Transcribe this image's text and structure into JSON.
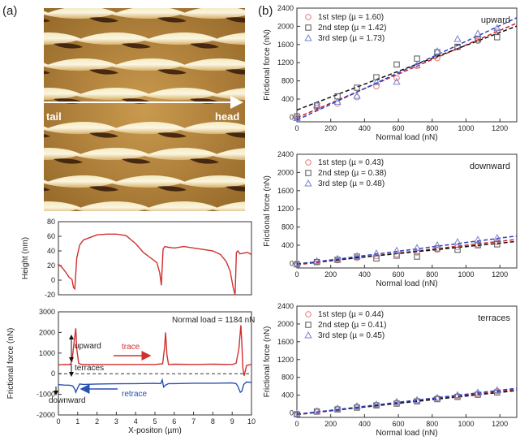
{
  "panels": {
    "a": "(a)",
    "b": "(b)"
  },
  "afm": {
    "tail": "tail",
    "head": "head"
  },
  "chart_data": [
    {
      "type": "line",
      "title": "",
      "xlabel": "",
      "ylabel": "Height (nm)",
      "xlim": [
        0,
        10
      ],
      "ylim": [
        -20,
        80
      ],
      "yticks": [
        -20,
        0,
        20,
        40,
        60,
        80
      ],
      "series": [
        {
          "name": "height",
          "color": "#d03030",
          "x": [
            0.0,
            0.2,
            0.4,
            0.55,
            0.7,
            0.78,
            0.85,
            0.95,
            1.1,
            1.3,
            1.6,
            2.0,
            2.5,
            3.0,
            3.5,
            4.0,
            4.4,
            4.8,
            5.1,
            5.25,
            5.33,
            5.42,
            5.5,
            5.7,
            6.0,
            6.5,
            7.0,
            7.5,
            8.0,
            8.4,
            8.7,
            8.9,
            9.05,
            9.15,
            9.22,
            9.3,
            9.4,
            9.6,
            9.8,
            10.0
          ],
          "y": [
            22,
            17,
            10,
            4,
            1,
            -10,
            -12,
            30,
            48,
            55,
            58,
            62,
            63,
            63,
            61,
            50,
            38,
            30,
            24,
            10,
            -7,
            42,
            46,
            45,
            44,
            46,
            44,
            42,
            40,
            35,
            25,
            12,
            -10,
            -20,
            38,
            40,
            36,
            37,
            38,
            35
          ]
        }
      ]
    },
    {
      "type": "line",
      "title": "",
      "xlabel": "X-positon (µm)",
      "ylabel": "Frictional force (nN)",
      "xlim": [
        0,
        10
      ],
      "ylim": [
        -2000,
        3000
      ],
      "yticks": [
        -2000,
        -1000,
        0,
        1000,
        2000,
        3000
      ],
      "xticks": [
        0,
        1,
        2,
        3,
        4,
        5,
        6,
        7,
        8,
        9,
        10
      ],
      "annotation": "Normal load = 1184 nN",
      "labels": {
        "upward": "upward",
        "terraces": "terraces",
        "downward": "downward",
        "trace": "trace",
        "retrace": "retrace"
      },
      "series": [
        {
          "name": "trace",
          "color": "#d03030",
          "x": [
            0.0,
            0.3,
            0.6,
            0.7,
            0.8,
            0.9,
            0.95,
            1.05,
            1.2,
            2.0,
            3.0,
            4.0,
            5.0,
            5.4,
            5.5,
            5.55,
            5.62,
            5.7,
            6.0,
            7.0,
            8.0,
            9.0,
            9.2,
            9.35,
            9.45,
            9.5,
            9.55,
            9.62,
            9.75,
            10.0
          ],
          "y": [
            430,
            450,
            440,
            600,
            1400,
            2200,
            1200,
            500,
            450,
            450,
            450,
            450,
            450,
            480,
            1300,
            2000,
            900,
            450,
            460,
            450,
            460,
            450,
            500,
            1200,
            2350,
            1500,
            300,
            -100,
            400,
            450
          ]
        },
        {
          "name": "retrace",
          "color": "#2a4fb5",
          "x": [
            0.0,
            0.3,
            0.6,
            0.75,
            0.85,
            0.9,
            1.0,
            1.1,
            1.3,
            2.0,
            3.0,
            4.0,
            5.0,
            5.3,
            5.38,
            5.45,
            5.55,
            5.7,
            6.0,
            7.0,
            8.0,
            9.0,
            9.2,
            9.3,
            9.42,
            9.5,
            9.6,
            9.75,
            10.0
          ],
          "y": [
            -530,
            -550,
            -560,
            -600,
            -750,
            -900,
            -680,
            -500,
            -520,
            -500,
            -490,
            -480,
            -470,
            -480,
            -300,
            -650,
            -550,
            -480,
            -480,
            -460,
            -460,
            -450,
            -480,
            -620,
            -900,
            -850,
            -520,
            -400,
            -420
          ]
        }
      ],
      "reference_line": 0
    },
    {
      "type": "scatter",
      "title": "upward",
      "xlabel": "Normal load (nN)",
      "ylabel": "Frictional force (nN)",
      "xlim": [
        0,
        1300
      ],
      "ylim": [
        0,
        2400
      ],
      "xticks": [
        0,
        200,
        400,
        600,
        800,
        1000,
        1200
      ],
      "yticks": [
        0,
        400,
        800,
        1200,
        1600,
        2000,
        2400
      ],
      "series": [
        {
          "name": "1st step (µ = 1.60)",
          "color": "#e07a7a",
          "marker": "circle",
          "x": [
            0,
            118,
            240,
            355,
            470,
            590,
            710,
            830,
            950,
            1070,
            1184
          ],
          "y": [
            -10,
            200,
            300,
            440,
            680,
            860,
            1130,
            1300,
            1540,
            1680,
            1880
          ],
          "fit": [
            -10,
            1.6
          ]
        },
        {
          "name": "2nd step (µ = 1.42)",
          "color": "#555555",
          "marker": "square",
          "x": [
            0,
            118,
            240,
            355,
            470,
            590,
            710,
            830,
            950,
            1070,
            1184
          ],
          "y": [
            20,
            260,
            460,
            650,
            880,
            1160,
            1290,
            1430,
            1550,
            1710,
            1760
          ],
          "fit": [
            160,
            1.42
          ]
        },
        {
          "name": "3rd step (µ = 1.73)",
          "color": "#7a82cc",
          "marker": "triangle",
          "x": [
            0,
            118,
            240,
            355,
            470,
            590,
            710,
            830,
            950,
            1070,
            1184
          ],
          "y": [
            -20,
            270,
            340,
            470,
            770,
            780,
            1140,
            1450,
            1720,
            1840,
            1960
          ],
          "fit": [
            -60,
            1.73
          ]
        }
      ]
    },
    {
      "type": "scatter",
      "title": "downward",
      "xlabel": "Normal load (nN)",
      "ylabel": "Frictional force (nN)",
      "xlim": [
        0,
        1300
      ],
      "ylim": [
        0,
        2400
      ],
      "xticks": [
        0,
        200,
        400,
        600,
        800,
        1000,
        1200
      ],
      "yticks": [
        0,
        400,
        800,
        1200,
        1600,
        2000,
        2400
      ],
      "series": [
        {
          "name": "1st step (µ = 0.43)",
          "color": "#e07a7a",
          "marker": "circle",
          "x": [
            0,
            118,
            240,
            355,
            470,
            590,
            710,
            830,
            950,
            1070,
            1184
          ],
          "y": [
            0,
            40,
            70,
            120,
            160,
            200,
            240,
            300,
            360,
            420,
            470
          ],
          "fit": [
            -30,
            0.43
          ]
        },
        {
          "name": "2nd step (µ = 0.38)",
          "color": "#555555",
          "marker": "square",
          "x": [
            0,
            118,
            240,
            355,
            470,
            590,
            710,
            830,
            950,
            1070,
            1184
          ],
          "y": [
            -20,
            30,
            80,
            150,
            110,
            170,
            150,
            330,
            300,
            400,
            420
          ],
          "fit": [
            -10,
            0.38
          ]
        },
        {
          "name": "3rd step (µ = 0.48)",
          "color": "#7a82cc",
          "marker": "triangle",
          "x": [
            0,
            118,
            240,
            355,
            470,
            590,
            710,
            830,
            950,
            1070,
            1184
          ],
          "y": [
            -10,
            50,
            100,
            160,
            220,
            280,
            340,
            400,
            470,
            520,
            560
          ],
          "fit": [
            -20,
            0.48
          ]
        }
      ]
    },
    {
      "type": "scatter",
      "title": "terraces",
      "xlabel": "Normal load (nN)",
      "ylabel": "Frictional force (nN)",
      "xlim": [
        0,
        1300
      ],
      "ylim": [
        0,
        2400
      ],
      "xticks": [
        0,
        200,
        400,
        600,
        800,
        1000,
        1200
      ],
      "yticks": [
        0,
        400,
        800,
        1200,
        1600,
        2000,
        2400
      ],
      "series": [
        {
          "name": "1st step (µ = 0.44)",
          "color": "#e07a7a",
          "marker": "circle",
          "x": [
            0,
            118,
            240,
            355,
            470,
            590,
            710,
            830,
            950,
            1070,
            1184
          ],
          "y": [
            -20,
            40,
            90,
            140,
            180,
            230,
            270,
            330,
            380,
            430,
            490
          ],
          "fit": [
            -40,
            0.44
          ]
        },
        {
          "name": "2nd step (µ = 0.41)",
          "color": "#555555",
          "marker": "square",
          "x": [
            0,
            118,
            240,
            355,
            470,
            590,
            710,
            830,
            950,
            1070,
            1184
          ],
          "y": [
            -30,
            30,
            80,
            120,
            170,
            210,
            260,
            310,
            360,
            410,
            460
          ],
          "fit": [
            -30,
            0.41
          ]
        },
        {
          "name": "3rd step (µ = 0.45)",
          "color": "#7a82cc",
          "marker": "triangle",
          "x": [
            0,
            118,
            240,
            355,
            470,
            590,
            710,
            830,
            950,
            1070,
            1184
          ],
          "y": [
            -20,
            40,
            100,
            150,
            190,
            250,
            290,
            340,
            400,
            460,
            510
          ],
          "fit": [
            -30,
            0.45
          ]
        }
      ]
    }
  ]
}
